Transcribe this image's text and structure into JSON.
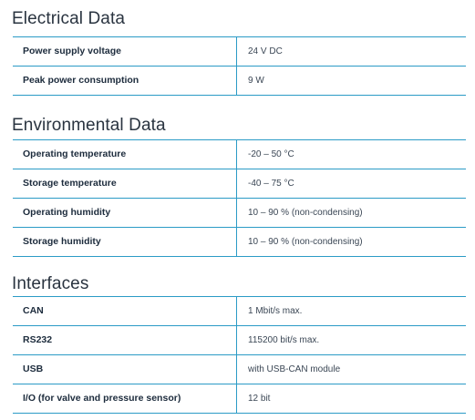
{
  "sections": [
    {
      "title": "Electrical Data",
      "rows": [
        {
          "label": "Power supply voltage",
          "value": "24 V DC"
        },
        {
          "label": "Peak power consumption",
          "value": "9 W"
        }
      ]
    },
    {
      "title": "Environmental Data",
      "rows": [
        {
          "label": "Operating temperature",
          "value": "-20 – 50 °C"
        },
        {
          "label": "Storage temperature",
          "value": "-40 – 75 °C"
        },
        {
          "label": "Operating humidity",
          "value": "10 – 90 % (non-condensing)"
        },
        {
          "label": "Storage humidity",
          "value": "10 – 90 % (non-condensing)"
        }
      ]
    },
    {
      "title": "Interfaces",
      "rows": [
        {
          "label": "CAN",
          "value": "1 Mbit/s max."
        },
        {
          "label": "RS232",
          "value": "115200 bit/s max."
        },
        {
          "label": "USB",
          "value": "with USB-CAN module"
        },
        {
          "label": "I/O (for valve and pressure sensor)",
          "value": "12 bit"
        }
      ]
    }
  ],
  "colors": {
    "rule": "#2b9bc6",
    "label_text": "#1c2b3c",
    "value_text": "#3a4654",
    "title_text": "#2a3440"
  }
}
